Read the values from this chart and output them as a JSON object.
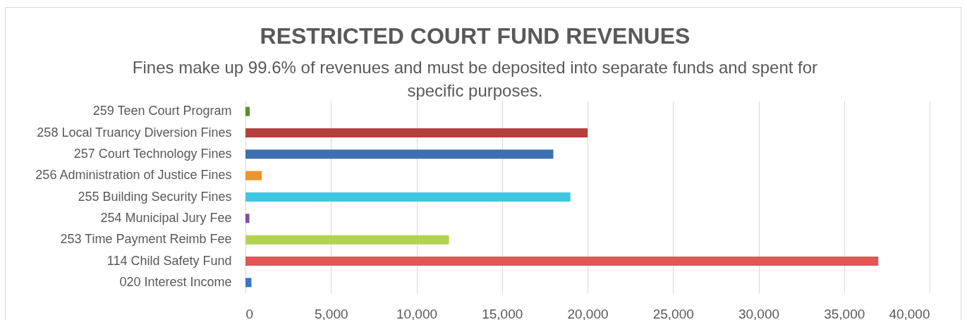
{
  "chart_data": {
    "type": "bar",
    "orientation": "horizontal",
    "title": "RESTRICTED COURT FUND REVENUES",
    "subtitle": "Fines make up 99.6% of revenues and must be deposited into separate funds and spent for specific purposes.",
    "categories": [
      "259 Teen Court Program",
      "258 Local Truancy Diversion Fines",
      "257 Court Technology Fines",
      "256 Administration of Justice Fines",
      "255 Building Security Fines",
      "254 Municipal Jury Fee",
      "253 Time Payment Reimb Fee",
      "114 Child Safety Fund",
      "020 Interest Income"
    ],
    "values": [
      250,
      20000,
      18000,
      950,
      19000,
      230,
      11900,
      37000,
      350
    ],
    "colors": [
      "#5b8c32",
      "#b5403d",
      "#3e6fb0",
      "#f0932b",
      "#3fc6e0",
      "#7d4fa3",
      "#b2d350",
      "#e05555",
      "#3f74c4"
    ],
    "xlim": [
      0,
      40000
    ],
    "xticks": [
      0,
      {
        "value": 5000,
        "label": "5,000"
      },
      {
        "value": 10000,
        "label": "10,000"
      },
      {
        "value": 15000,
        "label": "15,000"
      },
      {
        "value": 20000,
        "label": "20,000"
      },
      {
        "value": 25000,
        "label": "25,000"
      },
      {
        "value": 30000,
        "label": "30,000"
      },
      {
        "value": 35000,
        "label": "35,000"
      },
      {
        "value": 40000,
        "label": "40,000"
      }
    ],
    "grid": "x"
  }
}
